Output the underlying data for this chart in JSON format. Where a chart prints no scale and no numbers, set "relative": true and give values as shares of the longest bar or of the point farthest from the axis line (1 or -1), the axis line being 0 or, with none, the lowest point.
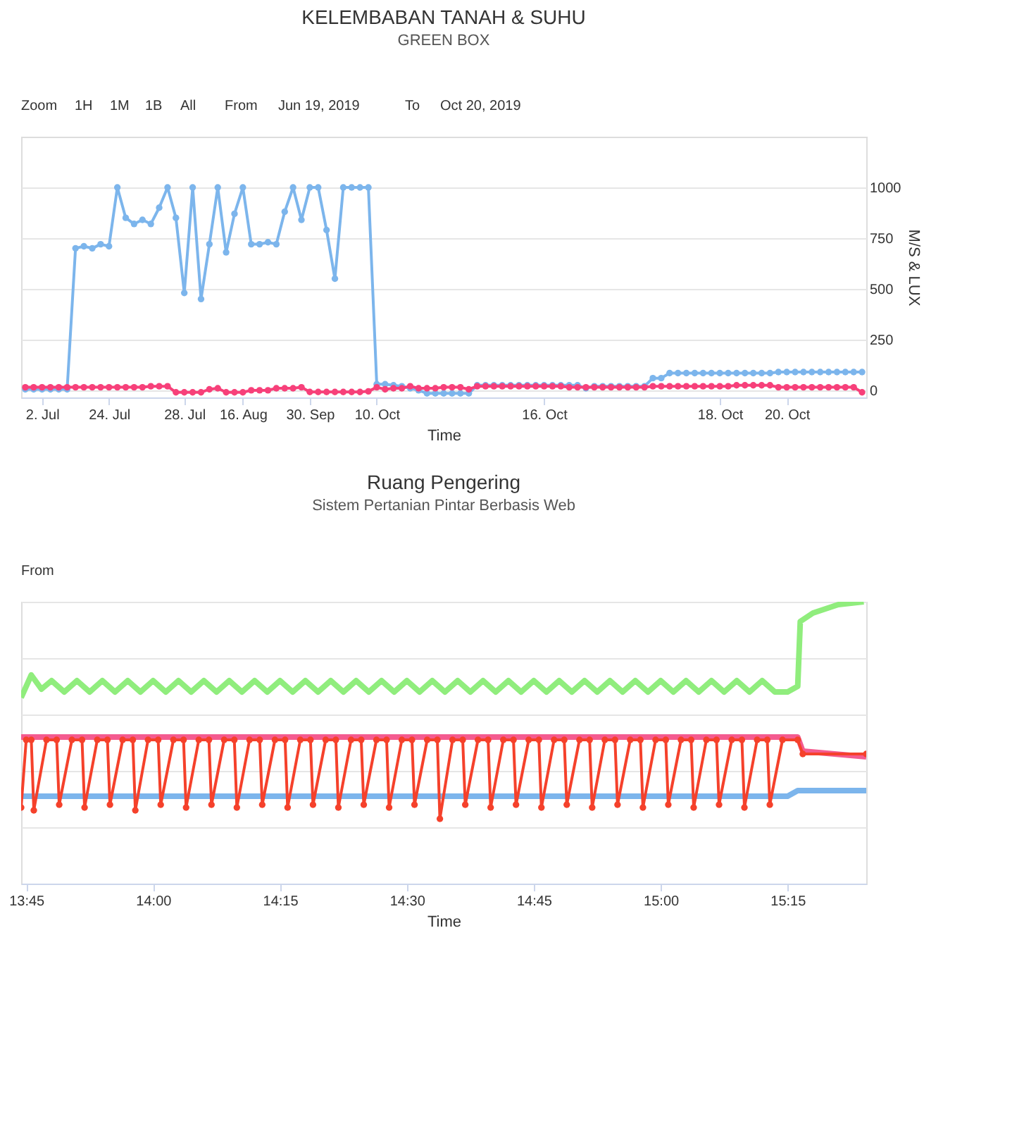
{
  "chart_data": [
    {
      "type": "line",
      "title": "KELEMBABAN TANAH & SUHU",
      "subtitle": "GREEN BOX",
      "xlabel": "Time",
      "ylabel": "M/S & LUX",
      "annotations": [
        "Zoom",
        "1H",
        "1M",
        "1B",
        "All",
        "From",
        "Jun 19, 2019",
        "To",
        "Oct 20, 2019"
      ],
      "categories": [
        null,
        null,
        "2. Jul",
        null,
        null,
        null,
        null,
        null,
        null,
        null,
        "24. Jul",
        null,
        null,
        null,
        null,
        null,
        null,
        null,
        null,
        "28. Jul",
        null,
        null,
        null,
        null,
        null,
        null,
        "16. Aug",
        null,
        null,
        null,
        null,
        null,
        null,
        null,
        "30. Sep",
        null,
        null,
        null,
        null,
        null,
        null,
        null,
        "10. Oct",
        null,
        null,
        null,
        null,
        null,
        null,
        null,
        null,
        null,
        null,
        null,
        null,
        null,
        null,
        null,
        null,
        null,
        null,
        null,
        "16. Oct",
        null,
        null,
        null,
        null,
        null,
        null,
        null,
        null,
        null,
        null,
        null,
        null,
        null,
        null,
        null,
        null,
        null,
        null,
        null,
        null,
        "18. Oct",
        null,
        null,
        null,
        null,
        null,
        null,
        null,
        "20. Oct",
        null,
        null,
        null,
        null,
        null,
        null,
        null,
        null,
        null
      ],
      "ylim": [
        -35,
        1250
      ],
      "yticks": [
        0,
        250,
        500,
        750,
        1000
      ],
      "grid": "y",
      "series": [
        {
          "color": "#7cb5ec",
          "marker": "circle",
          "values": [
            5,
            5,
            5,
            5,
            5,
            5,
            700,
            710,
            700,
            720,
            710,
            1000,
            850,
            820,
            840,
            820,
            900,
            1000,
            850,
            480,
            1000,
            450,
            720,
            1000,
            680,
            870,
            1000,
            720,
            720,
            730,
            720,
            880,
            1000,
            840,
            1000,
            1000,
            790,
            550,
            1000,
            1000,
            1000,
            1000,
            30,
            30,
            25,
            20,
            10,
            0,
            -15,
            -15,
            -15,
            -15,
            -15,
            -15,
            25,
            25,
            25,
            25,
            25,
            25,
            25,
            25,
            25,
            25,
            25,
            25,
            25,
            10,
            20,
            20,
            20,
            20,
            20,
            20,
            20,
            60,
            60,
            85,
            85,
            85,
            85,
            85,
            85,
            85,
            85,
            85,
            85,
            85,
            85,
            85,
            90,
            90,
            90,
            90,
            90,
            90,
            90,
            90,
            90,
            90,
            90
          ]
        },
        {
          "color": "#f7407a",
          "marker": "circle",
          "values": [
            15,
            15,
            15,
            15,
            15,
            15,
            15,
            15,
            15,
            15,
            15,
            15,
            15,
            15,
            15,
            20,
            20,
            20,
            -10,
            -10,
            -10,
            -10,
            5,
            10,
            -10,
            -10,
            -10,
            0,
            0,
            0,
            10,
            10,
            10,
            15,
            -8,
            -8,
            -8,
            -8,
            -8,
            -8,
            -8,
            -5,
            15,
            5,
            10,
            10,
            20,
            10,
            10,
            10,
            15,
            15,
            15,
            5,
            20,
            20,
            20,
            20,
            20,
            20,
            20,
            20,
            20,
            20,
            20,
            15,
            15,
            15,
            15,
            15,
            15,
            15,
            15,
            15,
            15,
            20,
            20,
            20,
            20,
            20,
            20,
            20,
            20,
            20,
            20,
            25,
            25,
            25,
            25,
            25,
            15,
            15,
            15,
            15,
            15,
            15,
            15,
            15,
            15,
            15,
            -10
          ]
        }
      ]
    },
    {
      "type": "line",
      "title": "Ruang Pengering",
      "subtitle": "Sistem Pertanian Pintar Berbasis Web",
      "xlabel": "Time",
      "relative": true,
      "annotations": [
        "From"
      ],
      "xlim": [
        13.74,
        15.405
      ],
      "xticks": [
        {
          "value": 13.75,
          "label": "13:45"
        },
        {
          "value": 14,
          "label": "14:00"
        },
        {
          "value": 14.25,
          "label": "14:15"
        },
        {
          "value": 14.5,
          "label": "14:30"
        },
        {
          "value": 14.75,
          "label": "14:45"
        },
        {
          "value": 15,
          "label": "15:00"
        },
        {
          "value": 15.25,
          "label": "15:15"
        }
      ],
      "grid": "y",
      "series": [
        {
          "color": "#90ed7d",
          "marker": "none",
          "x": [
            13.74,
            13.76,
            13.78,
            13.8,
            13.825,
            13.85,
            13.875,
            13.9,
            13.925,
            13.95,
            13.975,
            14.0,
            14.025,
            14.05,
            14.075,
            14.1,
            14.125,
            14.15,
            14.175,
            14.2,
            14.225,
            14.25,
            14.275,
            14.3,
            14.325,
            14.35,
            14.375,
            14.4,
            14.425,
            14.45,
            14.475,
            14.5,
            14.525,
            14.55,
            14.575,
            14.6,
            14.625,
            14.65,
            14.675,
            14.7,
            14.725,
            14.75,
            14.775,
            14.8,
            14.825,
            14.85,
            14.875,
            14.9,
            14.925,
            14.95,
            14.975,
            15.0,
            15.025,
            15.05,
            15.075,
            15.1,
            15.125,
            15.15,
            15.175,
            15.2,
            15.225,
            15.25,
            15.27,
            15.275,
            15.3,
            15.35,
            15.4
          ],
          "values": [
            0.66,
            0.74,
            0.69,
            0.72,
            0.68,
            0.72,
            0.68,
            0.72,
            0.68,
            0.72,
            0.68,
            0.72,
            0.68,
            0.72,
            0.68,
            0.72,
            0.68,
            0.72,
            0.68,
            0.72,
            0.68,
            0.72,
            0.68,
            0.72,
            0.68,
            0.72,
            0.68,
            0.72,
            0.68,
            0.72,
            0.68,
            0.72,
            0.68,
            0.72,
            0.68,
            0.72,
            0.68,
            0.72,
            0.68,
            0.72,
            0.68,
            0.72,
            0.68,
            0.72,
            0.68,
            0.72,
            0.68,
            0.72,
            0.68,
            0.72,
            0.68,
            0.72,
            0.68,
            0.72,
            0.68,
            0.72,
            0.68,
            0.72,
            0.68,
            0.72,
            0.68,
            0.68,
            0.7,
            0.93,
            0.96,
            0.99,
            1.0
          ]
        },
        {
          "color": "#f45b8f",
          "marker": "none",
          "x": [
            13.74,
            15.27,
            15.28,
            15.405
          ],
          "values": [
            0.52,
            0.52,
            0.47,
            0.45
          ]
        },
        {
          "color": "#7cb5ec",
          "marker": "none",
          "x": [
            13.74,
            15.25,
            15.27,
            15.405
          ],
          "values": [
            0.31,
            0.31,
            0.33,
            0.33
          ]
        },
        {
          "color": "#f5412b",
          "marker": "circle",
          "x": [
            13.74,
            13.75,
            13.76,
            13.765,
            13.79,
            13.81,
            13.815,
            13.84,
            13.86,
            13.865,
            13.89,
            13.91,
            13.915,
            13.94,
            13.96,
            13.965,
            13.99,
            14.01,
            14.015,
            14.04,
            14.06,
            14.065,
            14.09,
            14.11,
            14.115,
            14.14,
            14.16,
            14.165,
            14.19,
            14.21,
            14.215,
            14.24,
            14.26,
            14.265,
            14.29,
            14.31,
            14.315,
            14.34,
            14.36,
            14.365,
            14.39,
            14.41,
            14.415,
            14.44,
            14.46,
            14.465,
            14.49,
            14.51,
            14.515,
            14.54,
            14.56,
            14.565,
            14.59,
            14.61,
            14.615,
            14.64,
            14.66,
            14.665,
            14.69,
            14.71,
            14.715,
            14.74,
            14.76,
            14.765,
            14.79,
            14.81,
            14.815,
            14.84,
            14.86,
            14.865,
            14.89,
            14.91,
            14.915,
            14.94,
            14.96,
            14.965,
            14.99,
            15.01,
            15.015,
            15.04,
            15.06,
            15.065,
            15.09,
            15.11,
            15.115,
            15.14,
            15.16,
            15.165,
            15.19,
            15.21,
            15.215,
            15.24,
            15.27,
            15.28,
            15.405
          ],
          "values": [
            0.27,
            0.51,
            0.51,
            0.26,
            0.51,
            0.51,
            0.28,
            0.51,
            0.51,
            0.27,
            0.51,
            0.51,
            0.28,
            0.51,
            0.51,
            0.26,
            0.51,
            0.51,
            0.28,
            0.51,
            0.51,
            0.27,
            0.51,
            0.51,
            0.28,
            0.51,
            0.51,
            0.27,
            0.51,
            0.51,
            0.28,
            0.51,
            0.51,
            0.27,
            0.51,
            0.51,
            0.28,
            0.51,
            0.51,
            0.27,
            0.51,
            0.51,
            0.28,
            0.51,
            0.51,
            0.27,
            0.51,
            0.51,
            0.28,
            0.51,
            0.51,
            0.23,
            0.51,
            0.51,
            0.28,
            0.51,
            0.51,
            0.27,
            0.51,
            0.51,
            0.28,
            0.51,
            0.51,
            0.27,
            0.51,
            0.51,
            0.28,
            0.51,
            0.51,
            0.27,
            0.51,
            0.51,
            0.28,
            0.51,
            0.51,
            0.27,
            0.51,
            0.51,
            0.28,
            0.51,
            0.51,
            0.27,
            0.51,
            0.51,
            0.28,
            0.51,
            0.51,
            0.27,
            0.51,
            0.51,
            0.28,
            0.51,
            0.51,
            0.46,
            0.46
          ]
        }
      ]
    }
  ]
}
